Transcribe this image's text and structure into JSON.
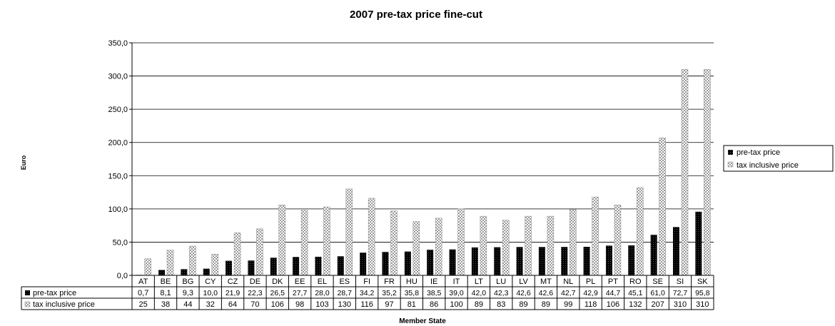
{
  "chart_data": {
    "type": "bar",
    "title": "2007 pre-tax price fine-cut",
    "xlabel": "Member State",
    "ylabel": "Euro",
    "ylim": [
      0,
      350
    ],
    "ytick_step": 50,
    "ytick_labels": [
      "0,0",
      "50,0",
      "100,0",
      "150,0",
      "200,0",
      "250,0",
      "300,0",
      "350,0"
    ],
    "grid": true,
    "legend_position": "right",
    "categories": [
      "AT",
      "BE",
      "BG",
      "CY",
      "CZ",
      "DE",
      "DK",
      "EE",
      "EL",
      "ES",
      "FI",
      "FR",
      "HU",
      "IE",
      "IT",
      "LT",
      "LU",
      "LV",
      "MT",
      "NL",
      "PL",
      "PT",
      "RO",
      "SE",
      "SI",
      "SK"
    ],
    "series": [
      {
        "name": "pre-tax price",
        "color": "#000000",
        "pattern": "solid-dark",
        "values": [
          0.7,
          8.1,
          9.3,
          10.0,
          21.9,
          22.3,
          26.5,
          27.7,
          28.0,
          28.7,
          34.2,
          35.2,
          35.8,
          38.5,
          39.0,
          42.0,
          42.3,
          42.6,
          42.6,
          42.7,
          42.9,
          44.7,
          45.1,
          61.0,
          72.7,
          95.8
        ],
        "labels": [
          "0,7",
          "8,1",
          "9,3",
          "10,0",
          "21,9",
          "22,3",
          "26,5",
          "27,7",
          "28,0",
          "28,7",
          "34,2",
          "35,2",
          "35,8",
          "38,5",
          "39,0",
          "42,0",
          "42,3",
          "42,6",
          "42,6",
          "42,7",
          "42,9",
          "44,7",
          "45,1",
          "61,0",
          "72,7",
          "95,8"
        ]
      },
      {
        "name": "tax inclusive price",
        "color": "#c8c8c8",
        "pattern": "checker-light",
        "values": [
          25,
          38,
          44,
          32,
          64,
          70,
          106,
          98,
          103,
          130,
          116,
          97,
          81,
          86,
          100,
          89,
          83,
          89,
          89,
          99,
          118,
          106,
          132,
          207,
          310,
          310
        ],
        "labels": [
          "25",
          "38",
          "44",
          "32",
          "64",
          "70",
          "106",
          "98",
          "103",
          "130",
          "116",
          "97",
          "81",
          "86",
          "100",
          "89",
          "83",
          "89",
          "89",
          "99",
          "118",
          "106",
          "132",
          "207",
          "310",
          "310"
        ]
      }
    ]
  }
}
